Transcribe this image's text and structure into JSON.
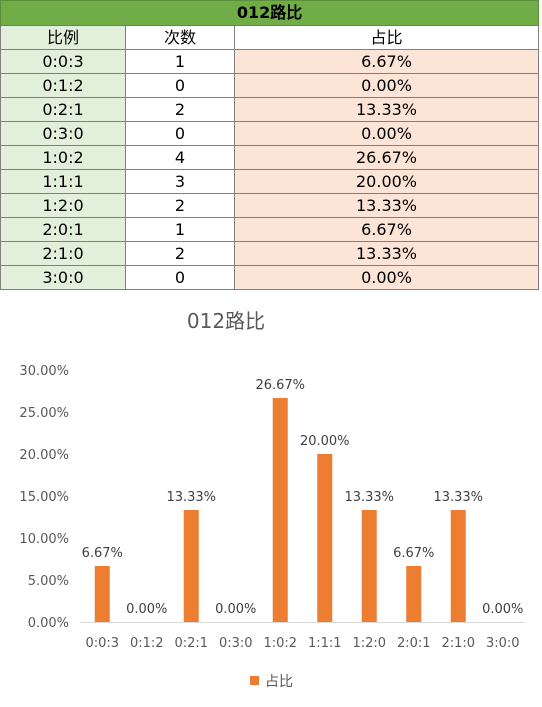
{
  "table": {
    "title": "012路比",
    "headers": [
      "比例",
      "次数",
      "占比"
    ],
    "rows": [
      [
        "0:0:3",
        "1",
        "6.67%"
      ],
      [
        "0:1:2",
        "0",
        "0.00%"
      ],
      [
        "0:2:1",
        "2",
        "13.33%"
      ],
      [
        "0:3:0",
        "0",
        "0.00%"
      ],
      [
        "1:0:2",
        "4",
        "26.67%"
      ],
      [
        "1:1:1",
        "3",
        "20.00%"
      ],
      [
        "1:2:0",
        "2",
        "13.33%"
      ],
      [
        "2:0:1",
        "1",
        "6.67%"
      ],
      [
        "2:1:0",
        "2",
        "13.33%"
      ],
      [
        "3:0:0",
        "0",
        "0.00%"
      ]
    ]
  },
  "chart_data": {
    "type": "bar",
    "title": "012路比",
    "categories": [
      "0:0:3",
      "0:1:2",
      "0:2:1",
      "0:3:0",
      "1:0:2",
      "1:1:1",
      "1:2:0",
      "2:0:1",
      "2:1:0",
      "3:0:0"
    ],
    "series": [
      {
        "name": "占比",
        "values": [
          6.67,
          0.0,
          13.33,
          0.0,
          26.67,
          20.0,
          13.33,
          6.67,
          13.33,
          0.0
        ]
      }
    ],
    "data_labels": [
      "6.67%",
      "0.00%",
      "13.33%",
      "0.00%",
      "26.67%",
      "20.00%",
      "13.33%",
      "6.67%",
      "13.33%",
      "0.00%"
    ],
    "y_ticks": [
      "0.00%",
      "5.00%",
      "10.00%",
      "15.00%",
      "20.00%",
      "25.00%",
      "30.00%"
    ],
    "ylim": [
      0,
      30
    ],
    "grid": false,
    "legend_position": "bottom",
    "colors": {
      "bar": "#ed7d31",
      "axis_text": "#595959",
      "title_text": "#595959"
    }
  }
}
